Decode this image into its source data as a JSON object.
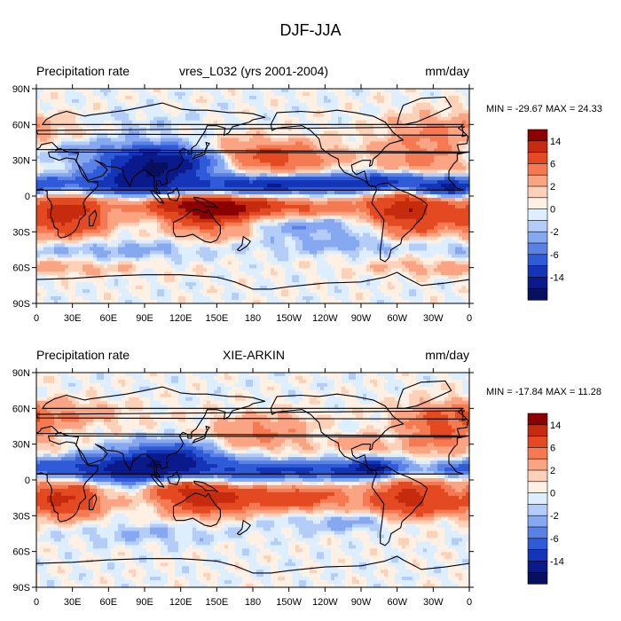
{
  "figure": {
    "title": "DJF-JJA"
  },
  "panels": [
    {
      "left_label": "Precipitation rate",
      "center_label": "vres_L032 (yrs 2001-2004)",
      "right_label": "mm/day",
      "stats": "MIN = -29.67 MAX =  24.33"
    },
    {
      "left_label": "Precipitation rate",
      "center_label": "XIE-ARKIN",
      "right_label": "mm/day",
      "stats": "MIN = -17.84 MAX =  11.28"
    }
  ],
  "axes": {
    "lat_ticks": [
      "90N",
      "60N",
      "30N",
      "0",
      "30S",
      "60S",
      "90S"
    ],
    "lon_ticks": [
      "0",
      "30E",
      "60E",
      "90E",
      "120E",
      "150E",
      "180",
      "150W",
      "120W",
      "90W",
      "60W",
      "30W",
      "0"
    ]
  },
  "colorbar": {
    "labels": [
      "14",
      "6",
      "2",
      "0",
      "-2",
      "-6",
      "-14"
    ],
    "colors": [
      "#8b0000",
      "#c62b0e",
      "#e34a22",
      "#f57a52",
      "#fba483",
      "#fdd0b8",
      "#fff0e4",
      "#ddeeff",
      "#b4cdf8",
      "#86a8f0",
      "#5a82e6",
      "#2f5bd8",
      "#1535b8",
      "#0b1a8a",
      "#06105e"
    ]
  },
  "palette": {
    "land_outline": "#000000",
    "neutral_ocean": "#d8e9fd"
  }
}
